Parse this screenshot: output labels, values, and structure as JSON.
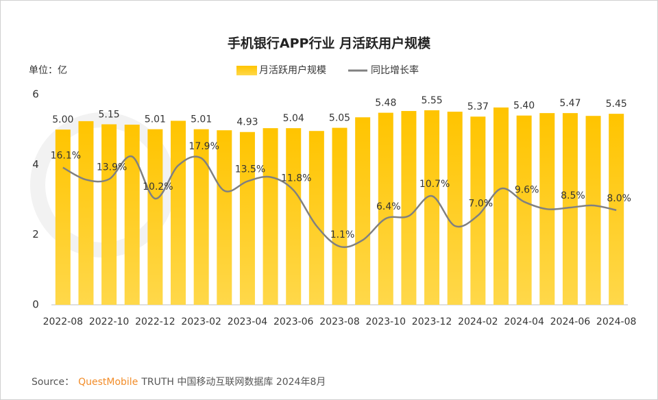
{
  "chart_data": {
    "type": "bar",
    "title": "手机银行APP行业 月活跃用户规模",
    "unit_label": "单位：亿",
    "categories": [
      "2022-08",
      null,
      "2022-10",
      null,
      "2022-12",
      null,
      "2023-02",
      null,
      "2023-04",
      null,
      "2023-06",
      null,
      "2023-08",
      null,
      "2023-10",
      null,
      "2023-12",
      null,
      "2024-02",
      null,
      "2024-04",
      null,
      "2024-06",
      null,
      "2024-08"
    ],
    "series": [
      {
        "name": "月活跃用户规模",
        "type": "bar",
        "color": "#FFC000",
        "values": [
          5.0,
          5.24,
          5.15,
          5.14,
          5.01,
          5.25,
          5.01,
          4.98,
          4.93,
          5.04,
          5.04,
          4.96,
          5.05,
          5.35,
          5.48,
          5.53,
          5.55,
          5.51,
          5.37,
          5.63,
          5.4,
          5.47,
          5.47,
          5.39,
          5.45
        ],
        "value_labels": [
          "5.00",
          null,
          "5.15",
          null,
          "5.01",
          null,
          "5.01",
          null,
          "4.93",
          null,
          "5.04",
          null,
          "5.05",
          null,
          "5.48",
          null,
          "5.55",
          null,
          "5.37",
          null,
          "5.40",
          null,
          "5.47",
          null,
          "5.45"
        ]
      },
      {
        "name": "同比增长率",
        "type": "line",
        "axis": "y2",
        "color": "#808080",
        "values": [
          16.1,
          13.8,
          13.9,
          18.2,
          10.2,
          16.5,
          17.9,
          11.7,
          13.5,
          14.3,
          11.8,
          5.0,
          1.1,
          2.3,
          6.4,
          6.9,
          10.7,
          5.0,
          7.0,
          12.1,
          9.6,
          8.2,
          8.5,
          8.9,
          8.0
        ],
        "value_labels": [
          "16.1%",
          null,
          "13.9%",
          null,
          "10.2%",
          null,
          "17.9%",
          null,
          "13.5%",
          null,
          "11.8%",
          null,
          "1.1%",
          null,
          "6.4%",
          null,
          "10.7%",
          null,
          "7.0%",
          null,
          "9.6%",
          null,
          "8.5%",
          null,
          "8.0%"
        ]
      }
    ],
    "ylim": [
      0,
      6
    ],
    "yticks": [
      0,
      2,
      4,
      6
    ],
    "y2lim": [
      -10,
      30
    ],
    "grid": false,
    "legend": "top",
    "source_label": "Source：",
    "source_brand": "QuestMobile",
    "source_text": "TRUTH 中国移动互联网数据库 2024年8月"
  }
}
